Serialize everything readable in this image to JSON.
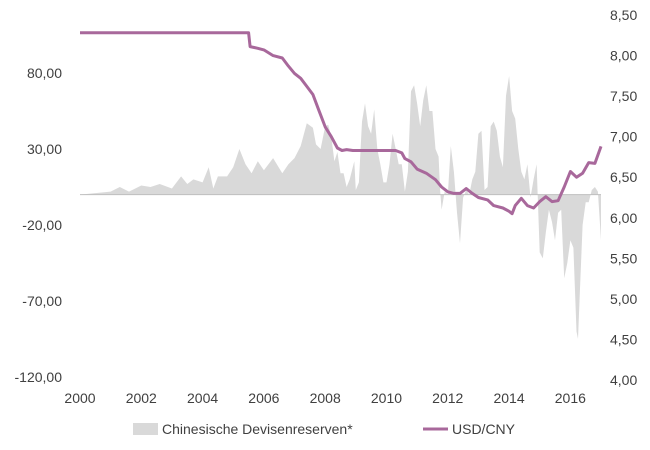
{
  "chart_data": {
    "type": "area+line",
    "title": "",
    "x_ticks": [
      "2000",
      "2002",
      "2004",
      "2006",
      "2008",
      "2010",
      "2012",
      "2014",
      "2016"
    ],
    "y_left_ticks": [
      "80,00",
      "30,00",
      "-20,00",
      "-70,00",
      "-120,00"
    ],
    "y_right_ticks": [
      "8,50",
      "8,00",
      "7,50",
      "7,00",
      "6,50",
      "6,00",
      "5,50",
      "5,00",
      "4,50",
      "4,00"
    ],
    "y_left_range": [
      -120,
      110
    ],
    "y_right_range": [
      4.0,
      8.5
    ],
    "x_range": [
      2000,
      2017
    ],
    "grid": false,
    "legend_position": "bottom",
    "series": [
      {
        "name": "Chinesische Devisenreserven*",
        "axis": "left",
        "kind": "area",
        "color": "#d9d9d9",
        "points": [
          [
            2000.0,
            0
          ],
          [
            2000.5,
            1
          ],
          [
            2001.0,
            2
          ],
          [
            2001.3,
            5
          ],
          [
            2001.6,
            2
          ],
          [
            2002.0,
            6
          ],
          [
            2002.3,
            5
          ],
          [
            2002.6,
            7
          ],
          [
            2003.0,
            4
          ],
          [
            2003.3,
            12
          ],
          [
            2003.5,
            7
          ],
          [
            2003.7,
            10
          ],
          [
            2004.0,
            8
          ],
          [
            2004.2,
            18
          ],
          [
            2004.35,
            4
          ],
          [
            2004.5,
            12
          ],
          [
            2004.8,
            12
          ],
          [
            2005.0,
            18
          ],
          [
            2005.2,
            30
          ],
          [
            2005.4,
            20
          ],
          [
            2005.6,
            14
          ],
          [
            2005.8,
            22
          ],
          [
            2006.0,
            16
          ],
          [
            2006.3,
            24
          ],
          [
            2006.6,
            14
          ],
          [
            2006.8,
            20
          ],
          [
            2007.0,
            24
          ],
          [
            2007.2,
            32
          ],
          [
            2007.4,
            47
          ],
          [
            2007.6,
            44
          ],
          [
            2007.7,
            33
          ],
          [
            2007.85,
            30
          ],
          [
            2008.0,
            45
          ],
          [
            2008.1,
            46
          ],
          [
            2008.2,
            38
          ],
          [
            2008.3,
            22
          ],
          [
            2008.4,
            28
          ],
          [
            2008.5,
            14
          ],
          [
            2008.6,
            14
          ],
          [
            2008.7,
            5
          ],
          [
            2008.8,
            10
          ],
          [
            2008.95,
            22
          ],
          [
            2009.0,
            3
          ],
          [
            2009.1,
            8
          ],
          [
            2009.2,
            48
          ],
          [
            2009.3,
            60
          ],
          [
            2009.4,
            45
          ],
          [
            2009.5,
            40
          ],
          [
            2009.6,
            56
          ],
          [
            2009.7,
            30
          ],
          [
            2009.8,
            20
          ],
          [
            2009.9,
            8
          ],
          [
            2010.0,
            8
          ],
          [
            2010.1,
            20
          ],
          [
            2010.2,
            40
          ],
          [
            2010.3,
            30
          ],
          [
            2010.4,
            20
          ],
          [
            2010.5,
            20
          ],
          [
            2010.6,
            2
          ],
          [
            2010.7,
            15
          ],
          [
            2010.8,
            68
          ],
          [
            2010.9,
            72
          ],
          [
            2011.0,
            60
          ],
          [
            2011.1,
            45
          ],
          [
            2011.2,
            62
          ],
          [
            2011.3,
            72
          ],
          [
            2011.4,
            55
          ],
          [
            2011.5,
            55
          ],
          [
            2011.6,
            30
          ],
          [
            2011.7,
            25
          ],
          [
            2011.75,
            3
          ],
          [
            2011.8,
            -10
          ],
          [
            2011.9,
            2
          ],
          [
            2012.0,
            0
          ],
          [
            2012.1,
            32
          ],
          [
            2012.2,
            15
          ],
          [
            2012.3,
            -12
          ],
          [
            2012.4,
            -32
          ],
          [
            2012.5,
            -2
          ],
          [
            2012.6,
            3
          ],
          [
            2012.7,
            0
          ],
          [
            2012.8,
            10
          ],
          [
            2012.9,
            15
          ],
          [
            2013.0,
            40
          ],
          [
            2013.1,
            42
          ],
          [
            2013.2,
            3
          ],
          [
            2013.3,
            5
          ],
          [
            2013.4,
            45
          ],
          [
            2013.5,
            48
          ],
          [
            2013.6,
            42
          ],
          [
            2013.7,
            25
          ],
          [
            2013.8,
            18
          ],
          [
            2013.9,
            65
          ],
          [
            2014.0,
            78
          ],
          [
            2014.1,
            55
          ],
          [
            2014.2,
            50
          ],
          [
            2014.3,
            30
          ],
          [
            2014.4,
            15
          ],
          [
            2014.5,
            10
          ],
          [
            2014.6,
            20
          ],
          [
            2014.7,
            -2
          ],
          [
            2014.8,
            10
          ],
          [
            2014.9,
            20
          ],
          [
            2015.0,
            -38
          ],
          [
            2015.1,
            -42
          ],
          [
            2015.2,
            -25
          ],
          [
            2015.3,
            -10
          ],
          [
            2015.4,
            -18
          ],
          [
            2015.5,
            -30
          ],
          [
            2015.6,
            -12
          ],
          [
            2015.7,
            -10
          ],
          [
            2015.8,
            -55
          ],
          [
            2015.9,
            -45
          ],
          [
            2016.0,
            -30
          ],
          [
            2016.1,
            -35
          ],
          [
            2016.2,
            -90
          ],
          [
            2016.25,
            -95
          ],
          [
            2016.3,
            -70
          ],
          [
            2016.4,
            -20
          ],
          [
            2016.5,
            -5
          ],
          [
            2016.6,
            -5
          ],
          [
            2016.7,
            3
          ],
          [
            2016.8,
            5
          ],
          [
            2016.9,
            2
          ],
          [
            2017.0,
            -30
          ]
        ]
      },
      {
        "name": "USD/CNY",
        "axis": "right",
        "kind": "line",
        "color": "#a8689b",
        "points": [
          [
            2000.0,
            8.28
          ],
          [
            2005.5,
            8.28
          ],
          [
            2005.55,
            8.11
          ],
          [
            2005.8,
            8.09
          ],
          [
            2006.0,
            8.07
          ],
          [
            2006.3,
            8.0
          ],
          [
            2006.6,
            7.97
          ],
          [
            2006.8,
            7.87
          ],
          [
            2007.0,
            7.78
          ],
          [
            2007.2,
            7.72
          ],
          [
            2007.4,
            7.62
          ],
          [
            2007.6,
            7.52
          ],
          [
            2007.8,
            7.32
          ],
          [
            2008.0,
            7.12
          ],
          [
            2008.2,
            7.0
          ],
          [
            2008.4,
            6.86
          ],
          [
            2008.55,
            6.83
          ],
          [
            2008.7,
            6.84
          ],
          [
            2008.9,
            6.83
          ],
          [
            2009.0,
            6.83
          ],
          [
            2009.3,
            6.83
          ],
          [
            2009.6,
            6.83
          ],
          [
            2010.0,
            6.83
          ],
          [
            2010.3,
            6.83
          ],
          [
            2010.5,
            6.8
          ],
          [
            2010.6,
            6.73
          ],
          [
            2010.8,
            6.69
          ],
          [
            2011.0,
            6.6
          ],
          [
            2011.3,
            6.55
          ],
          [
            2011.6,
            6.47
          ],
          [
            2011.8,
            6.38
          ],
          [
            2012.0,
            6.32
          ],
          [
            2012.2,
            6.3
          ],
          [
            2012.4,
            6.3
          ],
          [
            2012.6,
            6.36
          ],
          [
            2012.8,
            6.3
          ],
          [
            2013.0,
            6.25
          ],
          [
            2013.3,
            6.22
          ],
          [
            2013.5,
            6.15
          ],
          [
            2013.8,
            6.12
          ],
          [
            2014.0,
            6.08
          ],
          [
            2014.1,
            6.05
          ],
          [
            2014.2,
            6.15
          ],
          [
            2014.4,
            6.24
          ],
          [
            2014.6,
            6.15
          ],
          [
            2014.8,
            6.12
          ],
          [
            2015.0,
            6.2
          ],
          [
            2015.2,
            6.26
          ],
          [
            2015.4,
            6.2
          ],
          [
            2015.6,
            6.21
          ],
          [
            2015.8,
            6.38
          ],
          [
            2016.0,
            6.57
          ],
          [
            2016.2,
            6.5
          ],
          [
            2016.4,
            6.55
          ],
          [
            2016.6,
            6.68
          ],
          [
            2016.8,
            6.67
          ],
          [
            2017.0,
            6.88
          ]
        ]
      }
    ]
  }
}
